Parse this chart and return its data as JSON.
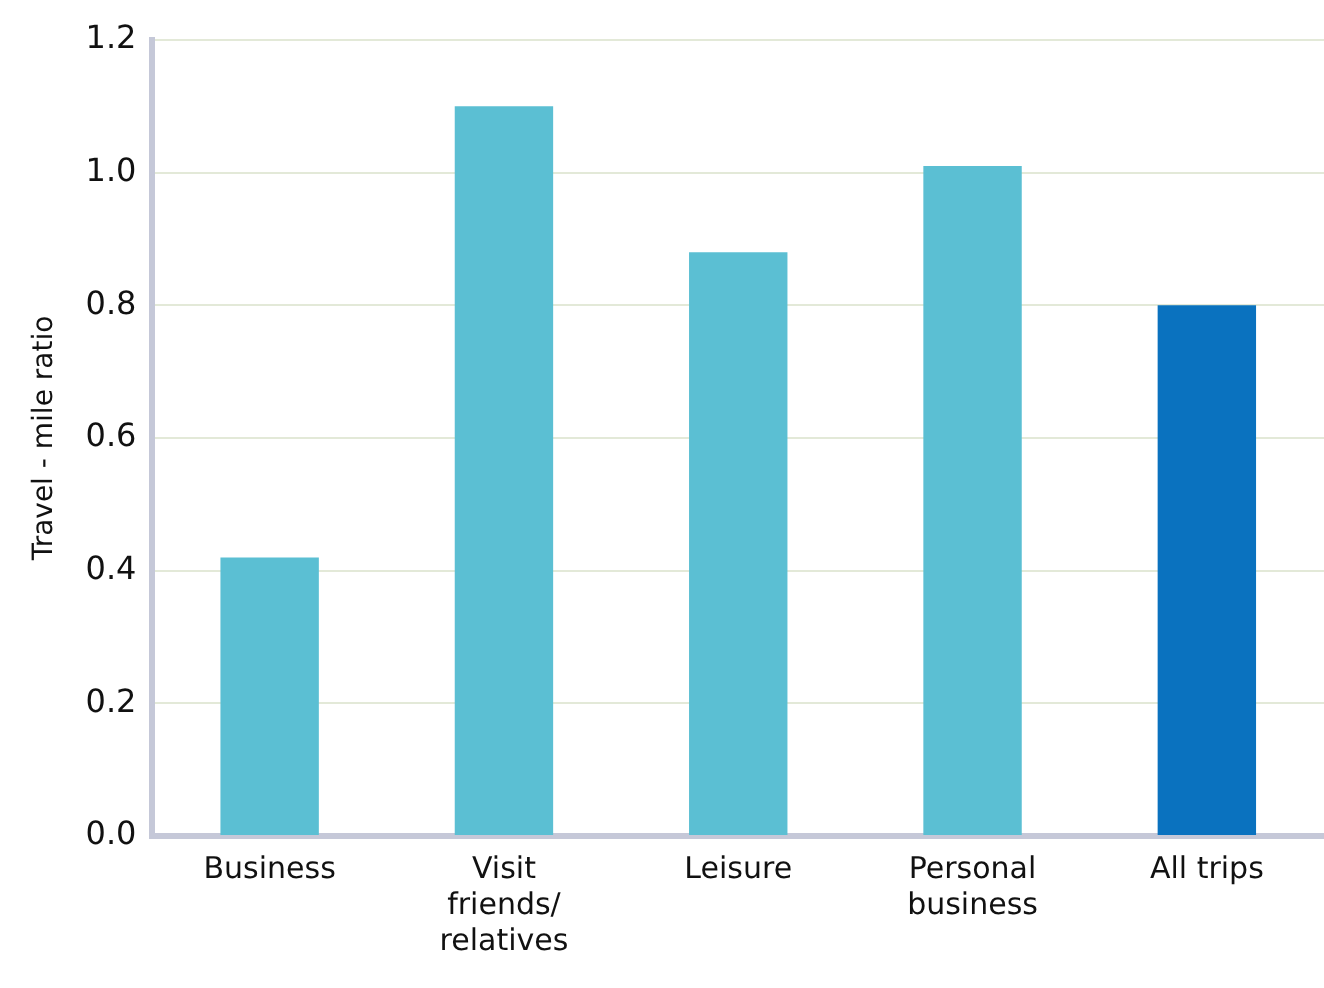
{
  "chart_data": {
    "type": "bar",
    "ylabel": "Travel - mile ratio",
    "categories": [
      "Business",
      "Visit\nfriends/\nrelatives",
      "Leisure",
      "Personal\nbusiness",
      "All trips"
    ],
    "values": [
      0.42,
      1.1,
      0.88,
      1.01,
      0.8
    ],
    "colors": [
      "#5bbfd3",
      "#5bbfd3",
      "#5bbfd3",
      "#5bbfd3",
      "#0a72bf"
    ],
    "ylim": [
      0,
      1.2
    ],
    "yticks": [
      {
        "value": 0,
        "label": "0.0"
      },
      0.2,
      0.4,
      0.6,
      0.8,
      {
        "value": 1,
        "label": "1.0"
      },
      1.2
    ],
    "grid": "y"
  }
}
